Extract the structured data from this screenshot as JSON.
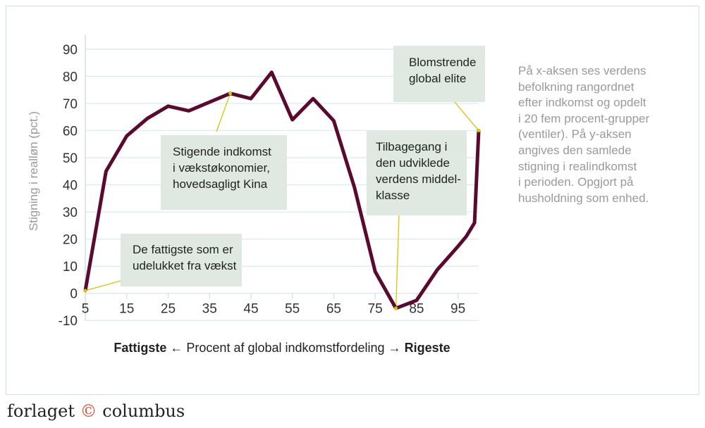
{
  "chart_data": {
    "type": "line",
    "ylabel": "Stigning i realløn (pct.)",
    "xlabel": {
      "left": "Fattigste",
      "left_arrow": "←",
      "middle": "Procent af global indkomstfordeling",
      "right_arrow": "→",
      "right": "Rigeste"
    },
    "xlim": [
      5,
      100
    ],
    "ylim": [
      -10,
      90
    ],
    "xticks": [
      5,
      15,
      25,
      35,
      45,
      55,
      65,
      75,
      85,
      95
    ],
    "yticks": [
      -10,
      0,
      10,
      20,
      30,
      40,
      50,
      60,
      70,
      80,
      90
    ],
    "grid": true,
    "line_color": "#5a0a2e",
    "x": [
      5,
      10,
      15,
      20,
      25,
      30,
      35,
      40,
      45,
      50,
      55,
      60,
      65,
      70,
      75,
      80,
      85,
      90,
      95,
      97,
      99,
      100
    ],
    "y": [
      1,
      45,
      58,
      64.5,
      69,
      67.3,
      70.5,
      73.7,
      71.8,
      81.5,
      64,
      71.8,
      63.6,
      39,
      8,
      -5.5,
      -2.6,
      8.7,
      17.3,
      21,
      26,
      60
    ],
    "annotations": [
      {
        "text": "De fattigste som er\nudelukket fra vækst",
        "x": 5,
        "y": 1
      },
      {
        "text": "Stigende indkomst\ni vækstøkonomier,\nhovedsagligt Kina",
        "x": 40,
        "y": 73.7
      },
      {
        "text": "Tilbagegang i\nden udviklede\nverdens middel-\nklasse",
        "x": 80,
        "y": -5.5
      },
      {
        "text": "Blomstrende\nglobal elite",
        "x": 100,
        "y": 60
      }
    ],
    "annotation_box_color": "#dfe8e1",
    "leader_color": "#d8c400"
  },
  "side_note": "På x-aksen ses verdens\nbefolkning rangordnet\nefter indkomst og opdelt\ni 20 fem procent-grupper\n(ventiler). På y-aksen\nangives den samlede\nstigning i realindkomst\ni perioden. Opgjort på\nhusholdning som enhed.",
  "logo": {
    "left": "forlaget",
    "mark": "©",
    "right": "columbus"
  }
}
